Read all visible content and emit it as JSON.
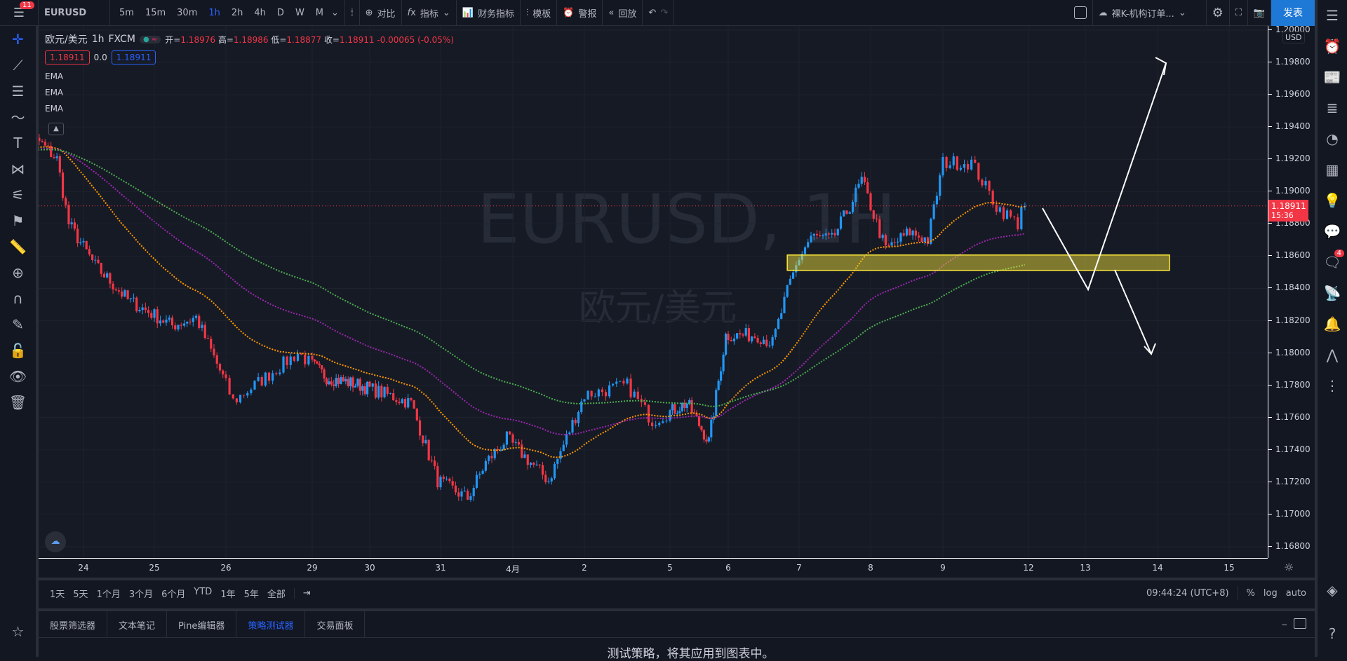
{
  "topbar": {
    "notifications": "11",
    "symbol": "EURUSD",
    "timeframes": [
      "5m",
      "15m",
      "30m",
      "1h",
      "2h",
      "4h",
      "D",
      "W",
      "M"
    ],
    "active_timeframe": "1h",
    "compare": "对比",
    "indicators": "指标",
    "financials": "财务指标",
    "templates": "模板",
    "alert": "警报",
    "replay": "回放",
    "layout_name": "裸K-机构订单...",
    "publish": "发表"
  },
  "legend": {
    "title": "欧元/美元",
    "interval": "1h",
    "exchange": "FXCM",
    "o_label": "开=",
    "o": "1.18976",
    "h_label": "高=",
    "h": "1.18986",
    "l_label": "低=",
    "l": "1.18877",
    "c_label": "收=",
    "c": "1.18911",
    "change": "-0.00065 (-0.05%)",
    "bid": "1.18911",
    "spread": "0.0",
    "ask": "1.18911",
    "indicators": [
      "EMA",
      "EMA",
      "EMA"
    ]
  },
  "watermark": {
    "line1": "EURUSD, 1H",
    "line2": "欧元/美元"
  },
  "price_axis": {
    "currency": "USD",
    "labels": [
      "1.20000",
      "1.19800",
      "1.19600",
      "1.19400",
      "1.19200",
      "1.19000",
      "1.18800",
      "1.18600",
      "1.18400",
      "1.18200",
      "1.18000",
      "1.17800",
      "1.17600",
      "1.17400",
      "1.17200",
      "1.17000",
      "1.16800"
    ],
    "current_price": "1.18911",
    "countdown": "15:36"
  },
  "time_axis": {
    "labels": [
      "24",
      "25",
      "26",
      "29",
      "30",
      "31",
      "4月",
      "2",
      "5",
      "6",
      "7",
      "8",
      "9",
      "12",
      "13",
      "14",
      "15"
    ]
  },
  "range_bar": {
    "ranges": [
      "1天",
      "5天",
      "1个月",
      "3个月",
      "6个月",
      "YTD",
      "1年",
      "5年",
      "全部"
    ],
    "clock": "09:44:24 (UTC+8)",
    "percent": "%",
    "log": "log",
    "auto": "auto"
  },
  "panel": {
    "tabs": [
      "股票筛选器",
      "文本笔记",
      "Pine编辑器",
      "策略测试器",
      "交易面板"
    ],
    "active_tab": "策略测试器",
    "message": "测试策略，将其应用到图表中。"
  },
  "right_sidebar": {
    "chat_badge": "4"
  },
  "colors": {
    "up": "#2196f3",
    "down": "#f23645",
    "ema_fast": "#ff9800",
    "ema_mid": "#9c27b0",
    "ema_slow": "#4caf50",
    "zone": "#ffeb3b",
    "accent": "#2962ff"
  },
  "chart_data": {
    "type": "candlestick",
    "symbol": "EURUSD",
    "interval": "1h",
    "ylim": [
      1.168,
      1.2
    ],
    "close_path": [
      [
        "3/23 09",
        1.1931
      ],
      [
        "3/23 15",
        1.192
      ],
      [
        "3/23 19",
        1.188
      ],
      [
        "3/24 04",
        1.1854
      ],
      [
        "3/24 15",
        1.1833
      ],
      [
        "3/25 06",
        1.1817
      ],
      [
        "3/25 14",
        1.1822
      ],
      [
        "3/25 23",
        1.1785
      ],
      [
        "3/26 02",
        1.177
      ],
      [
        "3/26 14",
        1.179
      ],
      [
        "3/26 20",
        1.18
      ],
      [
        "3/29 06",
        1.1785
      ],
      [
        "3/29 20",
        1.178
      ],
      [
        "3/30 14",
        1.1769
      ],
      [
        "3/30 23",
        1.1721
      ],
      [
        "3/31 09",
        1.171
      ],
      [
        "3/31 15",
        1.1732
      ],
      [
        "3/31 22",
        1.1747
      ],
      [
        "4/1 12",
        1.1721
      ],
      [
        "4/2 00",
        1.1774
      ],
      [
        "4/2 12",
        1.178
      ],
      [
        "4/2 19",
        1.1758
      ],
      [
        "4/5 07",
        1.1769
      ],
      [
        "4/5 16",
        1.1745
      ],
      [
        "4/5 23",
        1.1811
      ],
      [
        "4/6 10",
        1.1811
      ],
      [
        "4/6 15",
        1.1806
      ],
      [
        "4/6 20",
        1.1838
      ],
      [
        "4/7 00",
        1.1859
      ],
      [
        "4/7 04",
        1.1872
      ],
      [
        "4/7 11",
        1.187
      ],
      [
        "4/7 17",
        1.1891
      ],
      [
        "4/7 21",
        1.1907
      ],
      [
        "4/8 05",
        1.1864
      ],
      [
        "4/8 13",
        1.1875
      ],
      [
        "4/8 19",
        1.187
      ],
      [
        "4/9 00",
        1.1918
      ],
      [
        "4/9 08",
        1.1918
      ],
      [
        "4/9 15",
        1.1891
      ],
      [
        "4/9 21",
        1.188
      ],
      [
        "4/9 23",
        1.1904
      ],
      [
        "4/12 07",
        1.18911
      ]
    ],
    "zone": {
      "from": "4/6 20",
      "to": "4/14 04",
      "top": 1.18607,
      "bottom": 1.18512
    },
    "indicators": [
      "EMA",
      "EMA",
      "EMA"
    ]
  }
}
